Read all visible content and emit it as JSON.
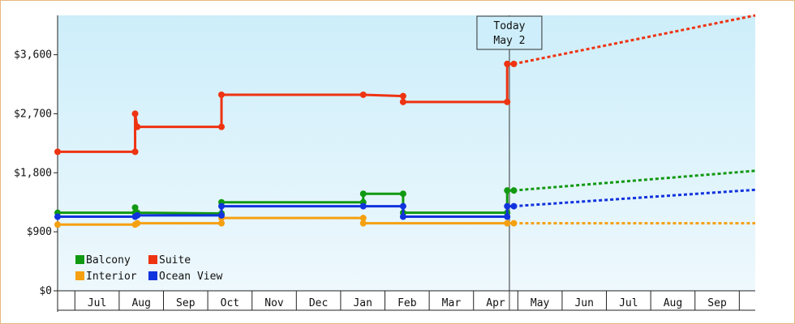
{
  "chart_data": {
    "type": "line",
    "title": "",
    "xlabel": "",
    "ylabel": "",
    "ylim": [
      0,
      4200
    ],
    "y_ticks": [
      {
        "value": 0,
        "label": "$0"
      },
      {
        "value": 900,
        "label": "$900"
      },
      {
        "value": 1800,
        "label": "$1,800"
      },
      {
        "value": 2700,
        "label": "$2,700"
      },
      {
        "value": 3600,
        "label": "$3,600"
      }
    ],
    "x_range": [
      0,
      15.75
    ],
    "months": [
      "Jul",
      "Aug",
      "Sep",
      "Oct",
      "Nov",
      "Dec",
      "Jan",
      "Feb",
      "Mar",
      "Apr",
      "May",
      "Jun",
      "Jul",
      "Aug",
      "Sep"
    ],
    "grid": false,
    "background": {
      "top": "#cdeefa",
      "bottom": "#eef8fd"
    },
    "legend_position": "bottom-left",
    "today": {
      "x": 10.2,
      "line1": "Today",
      "line2": "May 2"
    },
    "series": [
      {
        "name": "Balcony",
        "color": "#119911",
        "points": [
          [
            0,
            1190
          ],
          [
            1.75,
            1190
          ],
          [
            1.75,
            1270
          ],
          [
            1.8,
            1190
          ],
          [
            3.7,
            1180
          ],
          [
            3.7,
            1350
          ],
          [
            6.9,
            1350
          ],
          [
            6.9,
            1480
          ],
          [
            7.8,
            1480
          ],
          [
            7.8,
            1190
          ],
          [
            10.15,
            1190
          ],
          [
            10.15,
            1530
          ],
          [
            10.3,
            1530
          ]
        ],
        "forecast": [
          [
            10.3,
            1530
          ],
          [
            15.75,
            1830
          ]
        ]
      },
      {
        "name": "Suite",
        "color": "#ee3311",
        "points": [
          [
            0,
            2120
          ],
          [
            1.75,
            2120
          ],
          [
            1.75,
            2700
          ],
          [
            1.8,
            2500
          ],
          [
            3.7,
            2500
          ],
          [
            3.7,
            2990
          ],
          [
            6.9,
            2990
          ],
          [
            7.8,
            2970
          ],
          [
            7.8,
            2880
          ],
          [
            10.15,
            2880
          ],
          [
            10.15,
            3460
          ],
          [
            10.3,
            3460
          ]
        ],
        "forecast": [
          [
            10.3,
            3460
          ],
          [
            15.75,
            4200
          ]
        ]
      },
      {
        "name": "Interior",
        "color": "#f5a010",
        "points": [
          [
            0,
            1010
          ],
          [
            1.75,
            1010
          ],
          [
            1.8,
            1030
          ],
          [
            3.7,
            1030
          ],
          [
            3.7,
            1110
          ],
          [
            6.9,
            1110
          ],
          [
            6.9,
            1030
          ],
          [
            10.15,
            1030
          ],
          [
            10.3,
            1030
          ]
        ],
        "forecast": [
          [
            10.3,
            1030
          ],
          [
            15.75,
            1030
          ]
        ]
      },
      {
        "name": "Ocean View",
        "color": "#1133dd",
        "points": [
          [
            0,
            1130
          ],
          [
            1.75,
            1130
          ],
          [
            1.8,
            1150
          ],
          [
            3.7,
            1150
          ],
          [
            3.7,
            1290
          ],
          [
            6.9,
            1290
          ],
          [
            7.8,
            1290
          ],
          [
            7.8,
            1130
          ],
          [
            10.15,
            1130
          ],
          [
            10.15,
            1290
          ],
          [
            10.3,
            1290
          ]
        ],
        "forecast": [
          [
            10.3,
            1290
          ],
          [
            15.75,
            1540
          ]
        ]
      }
    ],
    "legend": [
      {
        "name": "Balcony",
        "color": "#119911"
      },
      {
        "name": "Suite",
        "color": "#ee3311"
      },
      {
        "name": "Interior",
        "color": "#f5a010"
      },
      {
        "name": "Ocean View",
        "color": "#1133dd"
      }
    ]
  }
}
